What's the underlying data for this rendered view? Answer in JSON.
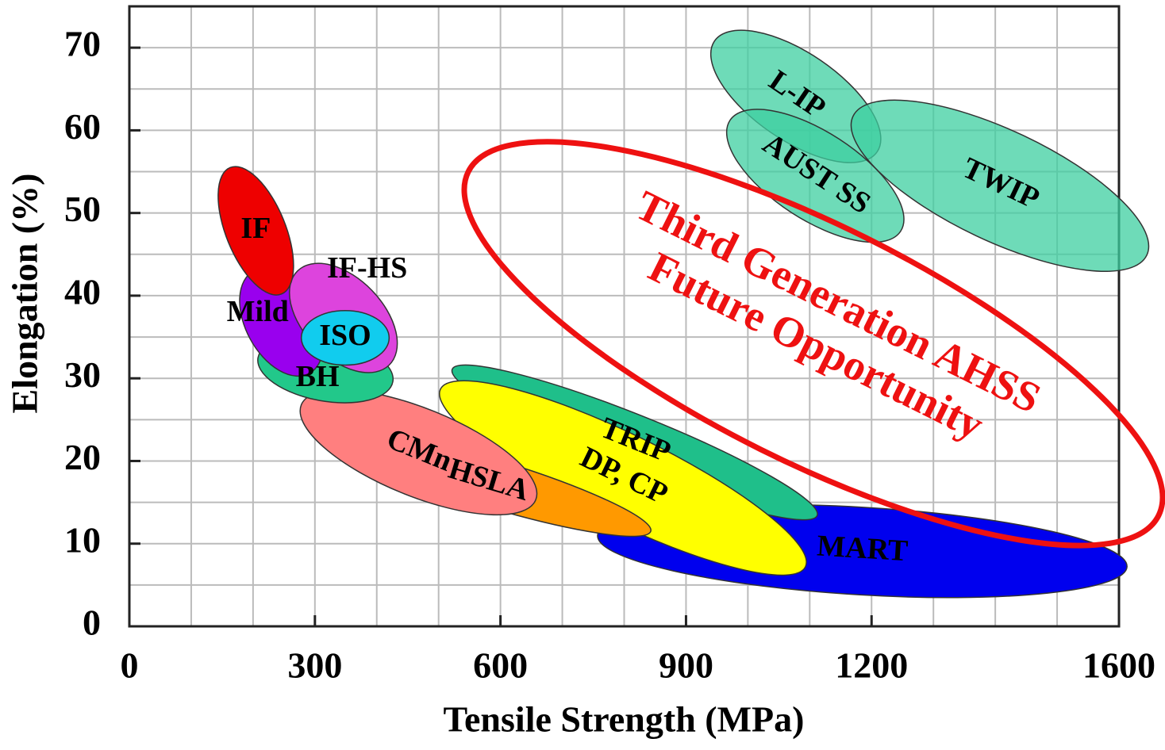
{
  "chart_data": {
    "type": "region",
    "x_label": "Tensile Strength (MPa)",
    "y_label": "Elongation (%)",
    "xlim": [
      0,
      1600
    ],
    "xticks": [
      0,
      300,
      600,
      900,
      1200,
      1600
    ],
    "xminorticks": [
      0,
      100,
      200,
      300,
      400,
      500,
      600,
      700,
      800,
      900,
      1000,
      1100,
      1200,
      1300,
      1400,
      1500,
      1600
    ],
    "ylim": [
      0,
      75
    ],
    "yticks": [
      0,
      10,
      20,
      30,
      40,
      50,
      60,
      70
    ],
    "yminorticks": [
      0,
      5,
      10,
      15,
      20,
      25,
      30,
      35,
      40,
      45,
      50,
      55,
      60,
      65,
      70,
      75
    ],
    "grid": true,
    "regions": [
      {
        "name": "MART",
        "color": "#0000ee",
        "from": [
          757,
          11.0
        ],
        "to": [
          1613,
          7.2
        ],
        "half_width": 5.3
      },
      {
        "name": "TRIP",
        "color": "#1fbf8a",
        "from": [
          522,
          31.1
        ],
        "to": [
          1112,
          13.4
        ],
        "half_width": 3.3
      },
      {
        "name": "DP, CP",
        "color": "#ffff00",
        "from": [
          503,
          28.7
        ],
        "to": [
          1093,
          7.2
        ],
        "half_width": 5.3
      },
      {
        "name": "HSLA",
        "color": "#ff9900",
        "from": [
          317,
          23.4
        ],
        "to": [
          843,
          11.5
        ],
        "half_width": 2.9
      },
      {
        "name": "CMn",
        "color": "#ff7f7f",
        "from": [
          278,
          26.8
        ],
        "to": [
          657,
          15.3
        ],
        "half_width": 5.3
      },
      {
        "name": "BH",
        "color": "#22c88a",
        "from": [
          208,
          32.5
        ],
        "to": [
          426,
          29.6
        ],
        "half_width": 3.8
      },
      {
        "name": "Mild",
        "color": "#9900ee",
        "from": [
          201,
          43.0
        ],
        "to": [
          291,
          30.6
        ],
        "half_width": 4.3
      },
      {
        "name": "IF-HS",
        "color": "#dd44dd",
        "from": [
          272,
          43.0
        ],
        "to": [
          420,
          31.6
        ],
        "half_width": 4.8
      },
      {
        "name": "ISO",
        "color": "#11ccee",
        "from": [
          278,
          34.9
        ],
        "to": [
          420,
          34.9
        ],
        "half_width": 3.3
      },
      {
        "name": "IF",
        "color": "#ee0000",
        "from": [
          163,
          55.5
        ],
        "to": [
          246,
          40.2
        ],
        "half_width": 3.6
      },
      {
        "name": "L-IP",
        "color": "#3dcfa0",
        "from": [
          946,
          70.8
        ],
        "to": [
          1209,
          57.4
        ],
        "half_width": 5.3
      },
      {
        "name": "AUST SS",
        "color": "#3dcfa0",
        "from": [
          971,
          61.2
        ],
        "to": [
          1247,
          47.8
        ],
        "half_width": 5.3
      },
      {
        "name": "TWIP",
        "color": "#3dcfa0",
        "from": [
          1170,
          61.7
        ],
        "to": [
          1645,
          44.9
        ],
        "half_width": 6.7
      }
    ],
    "annotation": {
      "lines": [
        "Future Opportunity",
        "Third Generation AHSS"
      ],
      "color": "#ee1111",
      "from": [
        548,
        55.0
      ],
      "to": [
        1664,
        13.4
      ],
      "half_width": 14.3
    }
  }
}
